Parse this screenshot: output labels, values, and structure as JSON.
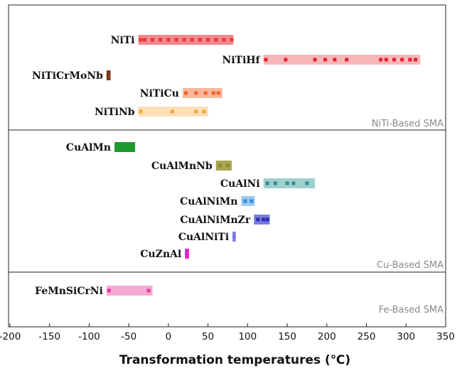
{
  "chart_data": {
    "type": "range",
    "xlabel": "Transformation temperatures (℃)",
    "xlim": [
      -200,
      350
    ],
    "xticks": [
      -200,
      -150,
      -100,
      -50,
      0,
      50,
      100,
      150,
      200,
      250,
      300,
      350
    ],
    "groups": [
      {
        "name": "NiTi-Based SMA",
        "alloys": [
          {
            "name": "NiTi",
            "range": [
              -38,
              82
            ],
            "color": "#e8353a",
            "bar_color": "#f08a8c",
            "points": [
              -35,
              -30,
              -20,
              -10,
              0,
              10,
              20,
              30,
              40,
              50,
              60,
              70,
              80
            ]
          },
          {
            "name": "NiTiHf",
            "range": [
              120,
              318
            ],
            "color": "#e81e2c",
            "bar_color": "#f7b7b9",
            "points": [
              123,
              148,
              185,
              198,
              210,
              225,
              268,
              275,
              285,
              295,
              305,
              312
            ]
          },
          {
            "name": "NiTiCrMoNb",
            "range": [
              -78,
              -73
            ],
            "color": "#7a3a1a",
            "bar_color": "#7a3a1a",
            "points": [
              -76
            ]
          },
          {
            "name": "NiTiCu",
            "range": [
              18,
              68
            ],
            "color": "#f26522",
            "bar_color": "#f9b89c",
            "points": [
              22,
              35,
              47,
              57,
              63
            ]
          },
          {
            "name": "NiTiNb",
            "range": [
              -38,
              50
            ],
            "color": "#f7a533",
            "bar_color": "#fce0b6",
            "points": [
              -35,
              5,
              35,
              45
            ]
          }
        ]
      },
      {
        "name": "Cu-Based SMA",
        "alloys": [
          {
            "name": "CuAlMn",
            "range": [
              -68,
              -42
            ],
            "color": "#1f9a2e",
            "bar_color": "#1f9a2e",
            "points": [
              -65,
              -58,
              -48
            ]
          },
          {
            "name": "CuAlMnNb",
            "range": [
              60,
              80
            ],
            "color": "#8a8a30",
            "bar_color": "#a7a653",
            "points": [
              65,
              75
            ]
          },
          {
            "name": "CuAlNi",
            "range": [
              120,
              185
            ],
            "color": "#3c8a8a",
            "bar_color": "#9fcfcf",
            "points": [
              125,
              135,
              150,
              158,
              175
            ]
          },
          {
            "name": "CuAlNiMn",
            "range": [
              92,
              109
            ],
            "color": "#2b8de0",
            "bar_color": "#9cc8f2",
            "points": [
              97,
              105
            ]
          },
          {
            "name": "CuAlNiMnZr",
            "range": [
              108,
              128
            ],
            "color": "#2a2ab8",
            "bar_color": "#7b7bdc",
            "points": [
              113,
              120,
              125
            ]
          },
          {
            "name": "CuAlNiTi",
            "range": [
              81,
              85
            ],
            "color": "#7a7ae0",
            "bar_color": "#7a7ae0",
            "points": [
              83
            ]
          },
          {
            "name": "CuZnAl",
            "range": [
              21,
              26
            ],
            "color": "#ee1fc8",
            "bar_color": "#ee1fc8",
            "points": [
              23
            ]
          }
        ]
      },
      {
        "name": "Fe-Based SMA",
        "alloys": [
          {
            "name": "FeMnSiCrNi",
            "range": [
              -78,
              -20
            ],
            "color": "#e63a9a",
            "bar_color": "#f6a9d4",
            "points": [
              -75,
              -25
            ]
          }
        ]
      }
    ]
  }
}
